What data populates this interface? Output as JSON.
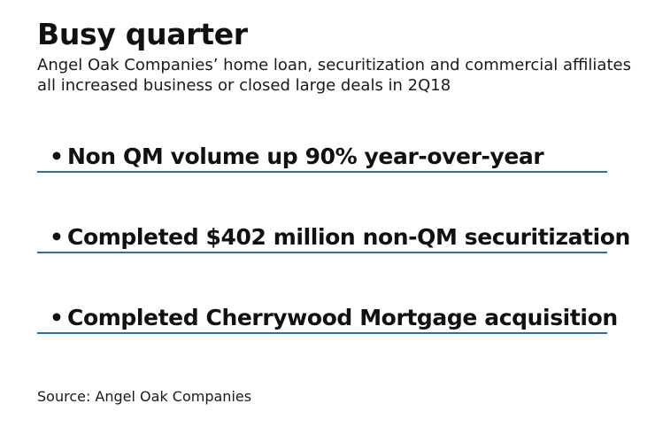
{
  "title": "Busy quarter",
  "subtitle": "Angel Oak Companies’ home loan, securitization and commercial affiliates all increased business or closed large deals in 2Q18",
  "bullet_glyph": "•",
  "items": [
    {
      "text": "Non QM volume up 90% year-over-year"
    },
    {
      "text": "Completed $402 million non-QM securitization"
    },
    {
      "text": "Completed Cherrywood Mortgage acquisition"
    }
  ],
  "source": "Source: Angel Oak Companies",
  "colors": {
    "rule": "#2f6fa3",
    "text": "#111111"
  }
}
